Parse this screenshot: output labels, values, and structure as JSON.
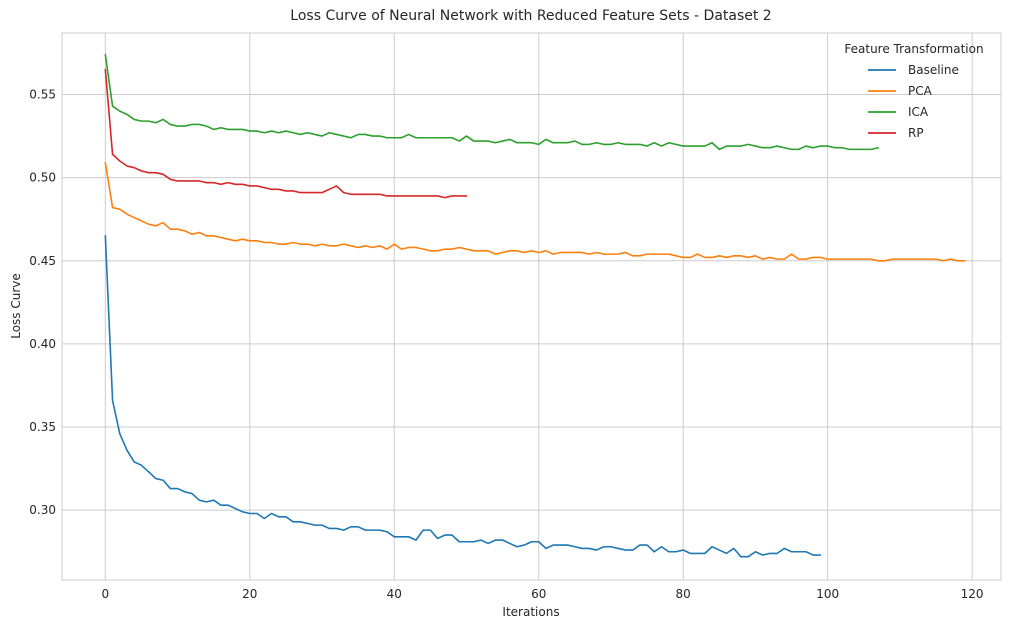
{
  "chart_data": {
    "type": "line",
    "title": "Loss Curve of Neural Network with Reduced Feature Sets - Dataset 2",
    "xlabel": "Iterations",
    "ylabel": "Loss Curve",
    "xlim": [
      -6,
      124
    ],
    "ylim": [
      0.258,
      0.587
    ],
    "xticks": [
      0,
      20,
      40,
      60,
      80,
      100,
      120
    ],
    "yticks": [
      0.3,
      0.35,
      0.4,
      0.45,
      0.5,
      0.55
    ],
    "xtick_labels": [
      "0",
      "20",
      "40",
      "60",
      "80",
      "100",
      "120"
    ],
    "ytick_labels": [
      "0.30",
      "0.35",
      "0.40",
      "0.45",
      "0.50",
      "0.55"
    ],
    "grid": true,
    "legend": {
      "title": "Feature Transformation",
      "placement": "top-right",
      "entries": [
        "Baseline",
        "PCA",
        "ICA",
        "RP"
      ]
    },
    "series": [
      {
        "name": "Baseline",
        "color": "#1f77b4",
        "values": [
          0.465,
          0.366,
          0.346,
          0.336,
          0.329,
          0.327,
          0.323,
          0.319,
          0.318,
          0.313,
          0.313,
          0.311,
          0.31,
          0.306,
          0.305,
          0.306,
          0.303,
          0.303,
          0.301,
          0.299,
          0.298,
          0.298,
          0.295,
          0.298,
          0.296,
          0.296,
          0.293,
          0.293,
          0.292,
          0.291,
          0.291,
          0.289,
          0.289,
          0.288,
          0.29,
          0.29,
          0.288,
          0.288,
          0.288,
          0.287,
          0.284,
          0.284,
          0.284,
          0.282,
          0.288,
          0.288,
          0.283,
          0.285,
          0.285,
          0.281,
          0.281,
          0.281,
          0.282,
          0.28,
          0.282,
          0.282,
          0.28,
          0.278,
          0.279,
          0.281,
          0.281,
          0.277,
          0.279,
          0.279,
          0.279,
          0.278,
          0.277,
          0.277,
          0.276,
          0.278,
          0.278,
          0.277,
          0.276,
          0.276,
          0.279,
          0.279,
          0.275,
          0.278,
          0.275,
          0.275,
          0.276,
          0.274,
          0.274,
          0.274,
          0.278,
          0.276,
          0.274,
          0.277,
          0.272,
          0.272,
          0.275,
          0.273,
          0.274,
          0.274,
          0.277,
          0.275,
          0.275,
          0.275,
          0.273,
          0.273
        ]
      },
      {
        "name": "PCA",
        "color": "#ff7f0e",
        "values": [
          0.509,
          0.482,
          0.481,
          0.478,
          0.476,
          0.474,
          0.472,
          0.471,
          0.473,
          0.469,
          0.469,
          0.468,
          0.466,
          0.467,
          0.465,
          0.465,
          0.464,
          0.463,
          0.462,
          0.463,
          0.462,
          0.462,
          0.461,
          0.461,
          0.46,
          0.46,
          0.461,
          0.46,
          0.46,
          0.459,
          0.46,
          0.459,
          0.459,
          0.46,
          0.459,
          0.458,
          0.459,
          0.458,
          0.459,
          0.457,
          0.46,
          0.457,
          0.458,
          0.458,
          0.457,
          0.456,
          0.456,
          0.457,
          0.457,
          0.458,
          0.457,
          0.456,
          0.456,
          0.456,
          0.454,
          0.455,
          0.456,
          0.456,
          0.455,
          0.456,
          0.455,
          0.456,
          0.454,
          0.455,
          0.455,
          0.455,
          0.455,
          0.454,
          0.455,
          0.454,
          0.454,
          0.454,
          0.455,
          0.453,
          0.453,
          0.454,
          0.454,
          0.454,
          0.454,
          0.453,
          0.452,
          0.452,
          0.454,
          0.452,
          0.452,
          0.453,
          0.452,
          0.453,
          0.453,
          0.452,
          0.453,
          0.451,
          0.452,
          0.451,
          0.451,
          0.454,
          0.451,
          0.451,
          0.452,
          0.452,
          0.451,
          0.451,
          0.451,
          0.451,
          0.451,
          0.451,
          0.451,
          0.45,
          0.45,
          0.451,
          0.451,
          0.451,
          0.451,
          0.451,
          0.451,
          0.451,
          0.45,
          0.451,
          0.45,
          0.45
        ]
      },
      {
        "name": "ICA",
        "color": "#2ca02c",
        "values": [
          0.574,
          0.543,
          0.54,
          0.538,
          0.535,
          0.534,
          0.534,
          0.533,
          0.535,
          0.532,
          0.531,
          0.531,
          0.532,
          0.532,
          0.531,
          0.529,
          0.53,
          0.529,
          0.529,
          0.529,
          0.528,
          0.528,
          0.527,
          0.528,
          0.527,
          0.528,
          0.527,
          0.526,
          0.527,
          0.526,
          0.525,
          0.527,
          0.526,
          0.525,
          0.524,
          0.526,
          0.526,
          0.525,
          0.525,
          0.524,
          0.524,
          0.524,
          0.526,
          0.524,
          0.524,
          0.524,
          0.524,
          0.524,
          0.524,
          0.522,
          0.525,
          0.522,
          0.522,
          0.522,
          0.521,
          0.522,
          0.523,
          0.521,
          0.521,
          0.521,
          0.52,
          0.523,
          0.521,
          0.521,
          0.521,
          0.522,
          0.52,
          0.52,
          0.521,
          0.52,
          0.52,
          0.521,
          0.52,
          0.52,
          0.52,
          0.519,
          0.521,
          0.519,
          0.521,
          0.52,
          0.519,
          0.519,
          0.519,
          0.519,
          0.521,
          0.517,
          0.519,
          0.519,
          0.519,
          0.52,
          0.519,
          0.518,
          0.518,
          0.519,
          0.518,
          0.517,
          0.517,
          0.519,
          0.518,
          0.519,
          0.519,
          0.518,
          0.518,
          0.517,
          0.517,
          0.517,
          0.517,
          0.518
        ]
      },
      {
        "name": "RP",
        "color": "#d62728",
        "values": [
          0.565,
          0.514,
          0.51,
          0.507,
          0.506,
          0.504,
          0.503,
          0.503,
          0.502,
          0.499,
          0.498,
          0.498,
          0.498,
          0.498,
          0.497,
          0.497,
          0.496,
          0.497,
          0.496,
          0.496,
          0.495,
          0.495,
          0.494,
          0.493,
          0.493,
          0.492,
          0.492,
          0.491,
          0.491,
          0.491,
          0.491,
          0.493,
          0.495,
          0.491,
          0.49,
          0.49,
          0.49,
          0.49,
          0.49,
          0.489,
          0.489,
          0.489,
          0.489,
          0.489,
          0.489,
          0.489,
          0.489,
          0.488,
          0.489,
          0.489,
          0.489
        ]
      }
    ]
  }
}
